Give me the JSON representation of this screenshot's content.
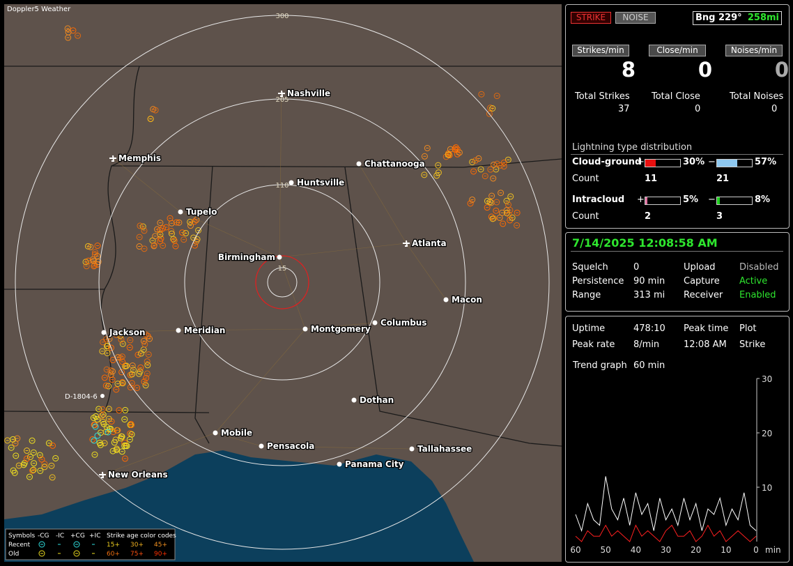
{
  "map": {
    "title": "Doppler5 Weather",
    "range_labels": [
      "300",
      "205",
      "110",
      "15"
    ],
    "cities": [
      "Nashville",
      "Memphis",
      "Chattanooga",
      "Huntsville",
      "Tupelo",
      "Atlanta",
      "Birmingham",
      "Macon",
      "Jackson",
      "Meridian",
      "Montgomery",
      "Columbus",
      "Dothan",
      "Mobile",
      "Pensacola",
      "Tallahassee",
      "Panama City",
      "New Orleans"
    ],
    "marker": "D-1804-6",
    "legend": {
      "header": [
        "Symbols",
        "-CG",
        "-IC",
        "+CG",
        "+IC",
        "Strike age color codes"
      ],
      "rows": [
        {
          "label": "Recent",
          "ages": [
            "15+",
            "30+",
            "45+"
          ]
        },
        {
          "label": "Old",
          "ages": [
            "60+",
            "75+",
            "90+"
          ]
        }
      ]
    }
  },
  "status": {
    "strike": "STRIKE",
    "noise": "NOISE",
    "bearing": "Bng 229°",
    "distance": "258mi"
  },
  "rates": [
    {
      "label": "Strikes/min",
      "value": 8,
      "total_label": "Total Strikes",
      "total": 37
    },
    {
      "label": "Close/min",
      "value": 0,
      "total_label": "Total Close",
      "total": 0
    },
    {
      "label": "Noises/min",
      "value": 0,
      "total_label": "Total Noises",
      "total": 0
    }
  ],
  "distribution": {
    "title": "Lightning type distribution",
    "count_label": "Count",
    "rows": [
      {
        "label": "Cloud-ground",
        "pos_sign": "+",
        "pos_pct": 30,
        "pos_pct_label": "30%",
        "neg_sign": "−",
        "neg_pct": 57,
        "neg_pct_label": "57%",
        "pos_count": 11,
        "neg_count": 21
      },
      {
        "label": "Intracloud",
        "pos_sign": "+",
        "pos_pct": 5,
        "pos_pct_label": "5%",
        "neg_sign": "−",
        "neg_pct": 8,
        "neg_pct_label": "8%",
        "pos_count": 2,
        "neg_count": 3
      }
    ]
  },
  "clock": "7/14/2025 12:08:58 AM",
  "settings": [
    [
      "Squelch",
      "0",
      "Upload",
      "Disabled"
    ],
    [
      "Persistence",
      "90 min",
      "Capture",
      "Active"
    ],
    [
      "Range",
      "313 mi",
      "Receiver",
      "Enabled"
    ]
  ],
  "stats": [
    [
      "Uptime",
      "478:10",
      "Peak time",
      "Plot"
    ],
    [
      "Peak rate",
      "8/min",
      "12:08 AM",
      "Strike"
    ]
  ],
  "trend": {
    "label": "Trend graph",
    "span": "60 min",
    "ylim": [
      0,
      30
    ],
    "yticks": [
      30,
      20,
      10
    ],
    "xlim": [
      60,
      0
    ],
    "xticks": [
      60,
      50,
      40,
      30,
      20,
      10,
      0
    ],
    "x_unit": "min",
    "x": [
      60,
      58,
      56,
      54,
      52,
      50,
      48,
      46,
      44,
      42,
      40,
      38,
      36,
      34,
      32,
      30,
      28,
      26,
      24,
      22,
      20,
      18,
      16,
      14,
      12,
      10,
      8,
      6,
      4,
      2,
      0
    ],
    "series": [
      {
        "color": "#ffffff",
        "values": [
          5,
          2,
          7,
          4,
          3,
          12,
          6,
          4,
          8,
          3,
          9,
          5,
          7,
          2,
          8,
          4,
          6,
          3,
          8,
          4,
          7,
          2,
          6,
          5,
          8,
          3,
          6,
          4,
          9,
          3,
          2
        ]
      },
      {
        "color": "#ff2020",
        "values": [
          1,
          0,
          2,
          1,
          1,
          3,
          1,
          2,
          1,
          0,
          3,
          1,
          2,
          1,
          0,
          2,
          3,
          1,
          1,
          2,
          0,
          1,
          3,
          1,
          2,
          0,
          1,
          2,
          1,
          0,
          1
        ]
      }
    ]
  }
}
